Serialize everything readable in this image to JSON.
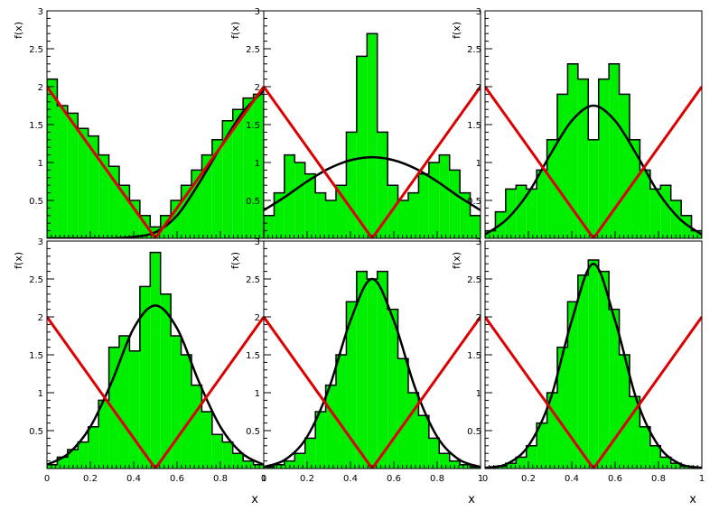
{
  "figure": {
    "x_axis_title": "x",
    "y_axis_title": "f(x)",
    "colors": {
      "hist_fill": "#00ee00",
      "hist_line": "#000000",
      "fit_curve": "#000000",
      "reference_line": "#dd0000",
      "frame": "#000000",
      "background": "#ffffff"
    },
    "x_ticks": [
      "0",
      "0.2",
      "0.4",
      "0.6",
      "0.8",
      "1"
    ],
    "y_ticks": [
      "0.5",
      "1",
      "1.5",
      "2",
      "2.5",
      "3"
    ]
  },
  "chart_data": [
    {
      "type": "area",
      "panel": "top-left",
      "xlim": [
        0,
        1
      ],
      "ylim": [
        0,
        3
      ],
      "xlabel": "",
      "ylabel": "f(x)",
      "grid": false,
      "fit_curve": {
        "x": [
          0,
          0.1,
          0.2,
          0.3,
          0.4,
          0.5,
          0.6,
          0.7,
          0.8,
          0.9,
          1.0
        ],
        "y": [
          0,
          0,
          0,
          0,
          0.02,
          0.08,
          0.3,
          0.72,
          1.2,
          1.65,
          1.95
        ]
      },
      "reference_line": {
        "x": [
          0,
          0.5,
          1
        ],
        "y": [
          2,
          0,
          2
        ]
      },
      "histogram": {
        "x": [
          0,
          0.05,
          0.1,
          0.15,
          0.2,
          0.25,
          0.3,
          0.35,
          0.4,
          0.45,
          0.5,
          0.55,
          0.6,
          0.65,
          0.7,
          0.75,
          0.8,
          0.85,
          0.9,
          0.95,
          1.0
        ],
        "y": [
          2.1,
          1.75,
          1.65,
          1.45,
          1.35,
          1.1,
          0.95,
          0.7,
          0.5,
          0.3,
          0.15,
          0.3,
          0.5,
          0.7,
          0.9,
          1.1,
          1.3,
          1.55,
          1.7,
          1.85,
          1.9
        ]
      }
    },
    {
      "type": "area",
      "panel": "top-middle",
      "xlim": [
        0,
        1
      ],
      "ylim": [
        0,
        3
      ],
      "xlabel": "",
      "ylabel": "f(x)",
      "grid": false,
      "fit_curve": {
        "x": [
          0,
          0.1,
          0.2,
          0.3,
          0.4,
          0.5,
          0.6,
          0.7,
          0.8,
          0.9,
          1.0
        ],
        "y": [
          0.37,
          0.55,
          0.75,
          0.92,
          1.03,
          1.07,
          1.03,
          0.92,
          0.75,
          0.55,
          0.37
        ]
      },
      "reference_line": {
        "x": [
          0,
          0.5,
          1
        ],
        "y": [
          2,
          0,
          2
        ]
      },
      "histogram": {
        "x": [
          0,
          0.05,
          0.1,
          0.15,
          0.2,
          0.25,
          0.3,
          0.35,
          0.4,
          0.45,
          0.5,
          0.55,
          0.6,
          0.65,
          0.7,
          0.75,
          0.8,
          0.85,
          0.9,
          0.95,
          1.0
        ],
        "y": [
          0.3,
          0.6,
          1.1,
          1.0,
          0.85,
          0.6,
          0.5,
          0.7,
          1.4,
          2.4,
          2.7,
          1.4,
          0.7,
          0.5,
          0.6,
          0.85,
          1.0,
          1.1,
          0.9,
          0.6,
          0.3
        ]
      }
    },
    {
      "type": "area",
      "panel": "top-right",
      "xlim": [
        0,
        1
      ],
      "ylim": [
        0,
        3
      ],
      "xlabel": "",
      "ylabel": "f(x)",
      "grid": false,
      "fit_curve": {
        "x": [
          0,
          0.1,
          0.2,
          0.3,
          0.4,
          0.5,
          0.6,
          0.7,
          0.8,
          0.9,
          1.0
        ],
        "y": [
          0.05,
          0.25,
          0.6,
          1.1,
          1.55,
          1.75,
          1.55,
          1.1,
          0.6,
          0.25,
          0.05
        ]
      },
      "reference_line": {
        "x": [
          0,
          0.5,
          1
        ],
        "y": [
          2,
          0,
          2
        ]
      },
      "histogram": {
        "x": [
          0,
          0.05,
          0.1,
          0.15,
          0.2,
          0.25,
          0.3,
          0.35,
          0.4,
          0.45,
          0.5,
          0.55,
          0.6,
          0.65,
          0.7,
          0.75,
          0.8,
          0.85,
          0.9,
          0.95,
          1.0
        ],
        "y": [
          0.1,
          0.35,
          0.65,
          0.7,
          0.65,
          0.9,
          1.3,
          1.9,
          2.3,
          2.1,
          1.3,
          2.1,
          2.3,
          1.9,
          1.3,
          0.9,
          0.65,
          0.7,
          0.5,
          0.3,
          0.1
        ]
      }
    },
    {
      "type": "area",
      "panel": "bottom-left",
      "xlim": [
        0,
        1
      ],
      "ylim": [
        0,
        3
      ],
      "xlabel": "x",
      "ylabel": "f(x)",
      "grid": false,
      "fit_curve": {
        "x": [
          0,
          0.1,
          0.2,
          0.3,
          0.4,
          0.5,
          0.6,
          0.7,
          0.8,
          0.9,
          1.0
        ],
        "y": [
          0.05,
          0.2,
          0.55,
          1.15,
          1.85,
          2.15,
          1.85,
          1.15,
          0.55,
          0.2,
          0.05
        ]
      },
      "reference_line": {
        "x": [
          0,
          0.5,
          1
        ],
        "y": [
          2,
          0,
          2
        ]
      },
      "histogram": {
        "x": [
          0,
          0.05,
          0.1,
          0.15,
          0.2,
          0.25,
          0.3,
          0.35,
          0.4,
          0.45,
          0.5,
          0.55,
          0.6,
          0.65,
          0.7,
          0.75,
          0.8,
          0.85,
          0.9,
          0.95,
          1.0
        ],
        "y": [
          0.05,
          0.15,
          0.25,
          0.35,
          0.55,
          0.9,
          1.6,
          1.75,
          1.55,
          2.4,
          2.85,
          2.3,
          1.75,
          1.5,
          1.1,
          0.75,
          0.45,
          0.35,
          0.2,
          0.1,
          0.05
        ]
      }
    },
    {
      "type": "area",
      "panel": "bottom-middle",
      "xlim": [
        0,
        1
      ],
      "ylim": [
        0,
        3
      ],
      "xlabel": "x",
      "ylabel": "f(x)",
      "grid": false,
      "fit_curve": {
        "x": [
          0,
          0.1,
          0.2,
          0.3,
          0.4,
          0.5,
          0.6,
          0.7,
          0.8,
          0.9,
          1.0
        ],
        "y": [
          0.02,
          0.12,
          0.42,
          1.05,
          1.95,
          2.5,
          1.95,
          1.05,
          0.42,
          0.12,
          0.02
        ]
      },
      "reference_line": {
        "x": [
          0,
          0.5,
          1
        ],
        "y": [
          2,
          0,
          2
        ]
      },
      "histogram": {
        "x": [
          0,
          0.05,
          0.1,
          0.15,
          0.2,
          0.25,
          0.3,
          0.35,
          0.4,
          0.45,
          0.5,
          0.55,
          0.6,
          0.65,
          0.7,
          0.75,
          0.8,
          0.85,
          0.9,
          0.95,
          1.0
        ],
        "y": [
          0.02,
          0.05,
          0.1,
          0.2,
          0.4,
          0.75,
          1.1,
          1.5,
          2.2,
          2.6,
          2.5,
          2.6,
          2.1,
          1.45,
          1.0,
          0.7,
          0.4,
          0.2,
          0.1,
          0.05,
          0.02
        ]
      }
    },
    {
      "type": "area",
      "panel": "bottom-right",
      "xlim": [
        0,
        1
      ],
      "ylim": [
        0,
        3
      ],
      "xlabel": "x",
      "ylabel": "f(x)",
      "grid": false,
      "fit_curve": {
        "x": [
          0,
          0.1,
          0.2,
          0.3,
          0.4,
          0.5,
          0.6,
          0.7,
          0.8,
          0.9,
          1.0
        ],
        "y": [
          0.01,
          0.06,
          0.3,
          0.9,
          1.95,
          2.7,
          1.95,
          0.9,
          0.3,
          0.06,
          0.01
        ]
      },
      "reference_line": {
        "x": [
          0,
          0.5,
          1
        ],
        "y": [
          2,
          0,
          2
        ]
      },
      "histogram": {
        "x": [
          0,
          0.05,
          0.1,
          0.15,
          0.2,
          0.25,
          0.3,
          0.35,
          0.4,
          0.45,
          0.5,
          0.55,
          0.6,
          0.65,
          0.7,
          0.75,
          0.8,
          0.85,
          0.9,
          0.95,
          1.0
        ],
        "y": [
          0.01,
          0.03,
          0.07,
          0.15,
          0.3,
          0.6,
          1.0,
          1.6,
          2.2,
          2.55,
          2.75,
          2.6,
          2.1,
          1.5,
          0.95,
          0.55,
          0.3,
          0.15,
          0.07,
          0.03,
          0.01
        ]
      }
    }
  ]
}
